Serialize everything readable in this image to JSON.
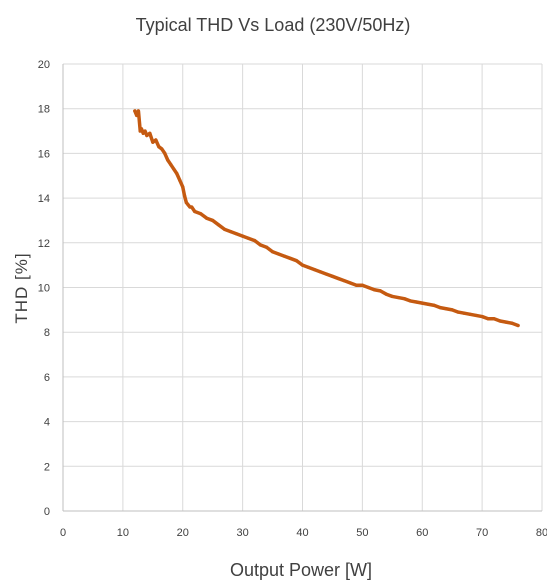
{
  "chart_data": {
    "type": "line",
    "title": "Typical THD Vs Load (230V/50Hz)",
    "xlabel": "Output Power [W]",
    "ylabel": "THD [%]",
    "xlim": [
      0,
      80
    ],
    "ylim": [
      0,
      20
    ],
    "x_ticks": [
      0,
      10,
      20,
      30,
      40,
      50,
      60,
      70,
      80
    ],
    "y_ticks": [
      0,
      2,
      4,
      6,
      8,
      10,
      12,
      14,
      16,
      18,
      20
    ],
    "grid": true,
    "legend": "none",
    "series": [
      {
        "color": "#c55a11",
        "x": [
          12.0,
          12.3,
          12.6,
          12.9,
          13.1,
          13.4,
          13.7,
          14.0,
          14.5,
          15.0,
          15.5,
          16.0,
          16.5,
          17.0,
          17.5,
          18.0,
          18.5,
          19.0,
          19.5,
          20.0,
          20.3,
          20.6,
          20.9,
          21.2,
          21.5,
          22.0,
          23.0,
          24.0,
          25.0,
          26.0,
          27.0,
          28.0,
          29.0,
          30.0,
          31.0,
          32.0,
          33.0,
          34.0,
          35.0,
          36.0,
          37.0,
          38.0,
          39.0,
          40.0,
          41.0,
          42.0,
          43.0,
          44.0,
          45.0,
          46.0,
          47.0,
          48.0,
          49.0,
          50.0,
          51.0,
          52.0,
          53.0,
          54.0,
          55.0,
          56.0,
          57.0,
          58.0,
          59.0,
          60.0,
          61.0,
          62.0,
          63.0,
          64.0,
          65.0,
          66.0,
          67.0,
          68.0,
          69.0,
          70.0,
          71.0,
          72.0,
          73.0,
          74.0,
          75.0,
          76.0
        ],
        "y": [
          17.9,
          17.7,
          17.9,
          17.0,
          17.1,
          16.9,
          17.0,
          16.8,
          16.9,
          16.5,
          16.6,
          16.3,
          16.2,
          16.0,
          15.7,
          15.5,
          15.3,
          15.1,
          14.8,
          14.5,
          14.1,
          13.8,
          13.7,
          13.6,
          13.6,
          13.4,
          13.3,
          13.1,
          13.0,
          12.8,
          12.6,
          12.5,
          12.4,
          12.3,
          12.2,
          12.1,
          11.9,
          11.8,
          11.6,
          11.5,
          11.4,
          11.3,
          11.2,
          11.0,
          10.9,
          10.8,
          10.7,
          10.6,
          10.5,
          10.4,
          10.3,
          10.2,
          10.1,
          10.1,
          10.0,
          9.9,
          9.85,
          9.7,
          9.6,
          9.55,
          9.5,
          9.4,
          9.35,
          9.3,
          9.25,
          9.2,
          9.1,
          9.05,
          9.0,
          8.9,
          8.85,
          8.8,
          8.75,
          8.7,
          8.6,
          8.6,
          8.5,
          8.45,
          8.4,
          8.3
        ]
      }
    ]
  }
}
